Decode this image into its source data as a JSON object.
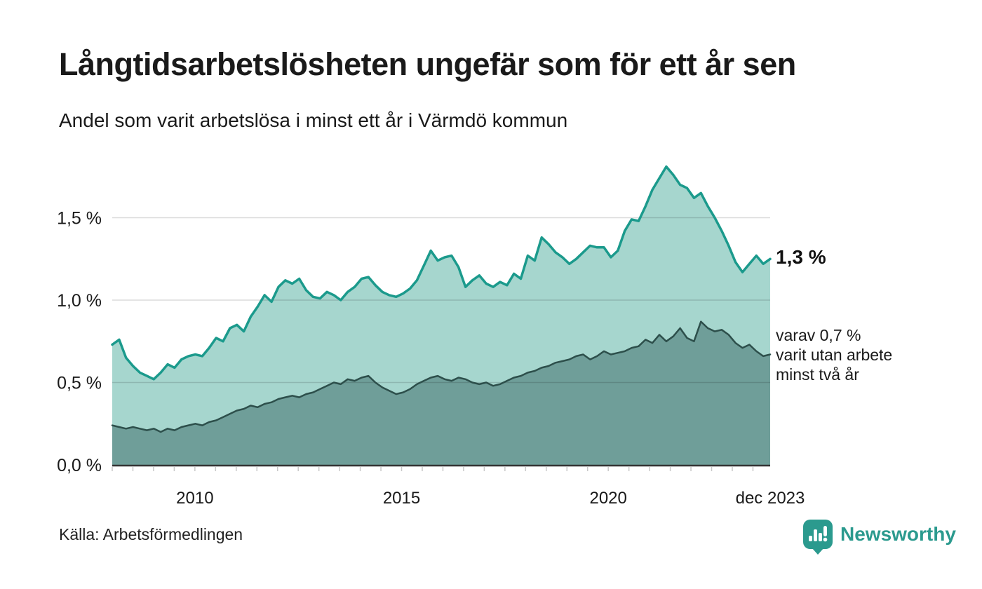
{
  "header": {
    "title": "Långtidsarbetslösheten ungefär som för ett år sen",
    "subtitle": "Andel som varit arbetslösa i minst ett år i Värmdö kommun"
  },
  "annotations": {
    "latest_total": "1,3 %",
    "note": "varav 0,7 %\nvarit utan arbete\nminst två år"
  },
  "footer": {
    "source": "Källa: Arbetsförmedlingen",
    "brand": "Newsworthy"
  },
  "colors": {
    "line_one_year": "#1b9a8c",
    "fill_one_year": "#a6d6ce",
    "line_two_years": "#2d4f4b",
    "fill_two_years": "#6f9e99",
    "gridline": "rgba(0,0,0,0.14)",
    "axis": "#333333",
    "minor_tick": "#c8c8c8",
    "brand_teal": "#2b9a8e",
    "text": "#1a1a1a"
  },
  "chart_data": {
    "type": "area",
    "title": "Långtidsarbetslösheten ungefär som för ett år sen",
    "subtitle": "Andel som varit arbetslösa i minst ett år i Värmdö kommun",
    "unit": "%",
    "grid": "horizontal",
    "legend_position": "none",
    "x_start_year": 2008.0,
    "x_end_year": 2023.9167,
    "points_per_year": 6,
    "ylim": [
      0,
      1.9
    ],
    "y_ticks": [
      {
        "value": 0.0,
        "label": "0,0 %"
      },
      {
        "value": 0.5,
        "label": "0,5 %"
      },
      {
        "value": 1.0,
        "label": "1,0 %"
      },
      {
        "value": 1.5,
        "label": "1,5 %"
      }
    ],
    "x_ticks": [
      {
        "year": 2010,
        "label": "2010"
      },
      {
        "year": 2015,
        "label": "2015"
      },
      {
        "year": 2020,
        "label": "2020"
      },
      {
        "year": 2023.9167,
        "label": "dec 2023"
      }
    ],
    "minor_tick_interval_years": 0.5,
    "series": [
      {
        "name": "Arbetslösa minst ett år",
        "latest_label": "1,3 %",
        "latest_value": 1.3,
        "color": "#1b9a8c",
        "fill": "#a6d6ce",
        "stroke_width": 3.5,
        "values": [
          0.73,
          0.76,
          0.65,
          0.6,
          0.56,
          0.54,
          0.52,
          0.56,
          0.61,
          0.59,
          0.64,
          0.66,
          0.67,
          0.66,
          0.71,
          0.77,
          0.75,
          0.83,
          0.85,
          0.81,
          0.9,
          0.96,
          1.03,
          0.99,
          1.08,
          1.12,
          1.1,
          1.13,
          1.06,
          1.02,
          1.01,
          1.05,
          1.03,
          1.0,
          1.05,
          1.08,
          1.13,
          1.14,
          1.09,
          1.05,
          1.03,
          1.02,
          1.04,
          1.07,
          1.12,
          1.21,
          1.3,
          1.24,
          1.26,
          1.27,
          1.2,
          1.08,
          1.12,
          1.15,
          1.1,
          1.08,
          1.11,
          1.09,
          1.16,
          1.13,
          1.27,
          1.24,
          1.38,
          1.34,
          1.29,
          1.26,
          1.22,
          1.25,
          1.29,
          1.33,
          1.32,
          1.32,
          1.26,
          1.3,
          1.42,
          1.49,
          1.48,
          1.57,
          1.67,
          1.74,
          1.81,
          1.76,
          1.7,
          1.68,
          1.62,
          1.65,
          1.57,
          1.5,
          1.42,
          1.33,
          1.23,
          1.17,
          1.22,
          1.27,
          1.22,
          1.25
        ]
      },
      {
        "name": "varav arbetslösa minst två år",
        "latest_label": "0,7 %",
        "latest_value": 0.7,
        "color": "#2d4f4b",
        "fill": "#6f9e99",
        "stroke_width": 2.5,
        "values": [
          0.24,
          0.23,
          0.22,
          0.23,
          0.22,
          0.21,
          0.22,
          0.2,
          0.22,
          0.21,
          0.23,
          0.24,
          0.25,
          0.24,
          0.26,
          0.27,
          0.29,
          0.31,
          0.33,
          0.34,
          0.36,
          0.35,
          0.37,
          0.38,
          0.4,
          0.41,
          0.42,
          0.41,
          0.43,
          0.44,
          0.46,
          0.48,
          0.5,
          0.49,
          0.52,
          0.51,
          0.53,
          0.54,
          0.5,
          0.47,
          0.45,
          0.43,
          0.44,
          0.46,
          0.49,
          0.51,
          0.53,
          0.54,
          0.52,
          0.51,
          0.53,
          0.52,
          0.5,
          0.49,
          0.5,
          0.48,
          0.49,
          0.51,
          0.53,
          0.54,
          0.56,
          0.57,
          0.59,
          0.6,
          0.62,
          0.63,
          0.64,
          0.66,
          0.67,
          0.64,
          0.66,
          0.69,
          0.67,
          0.68,
          0.69,
          0.71,
          0.72,
          0.76,
          0.74,
          0.79,
          0.75,
          0.78,
          0.83,
          0.77,
          0.75,
          0.87,
          0.83,
          0.81,
          0.82,
          0.79,
          0.74,
          0.71,
          0.73,
          0.69,
          0.66,
          0.67
        ]
      }
    ]
  }
}
